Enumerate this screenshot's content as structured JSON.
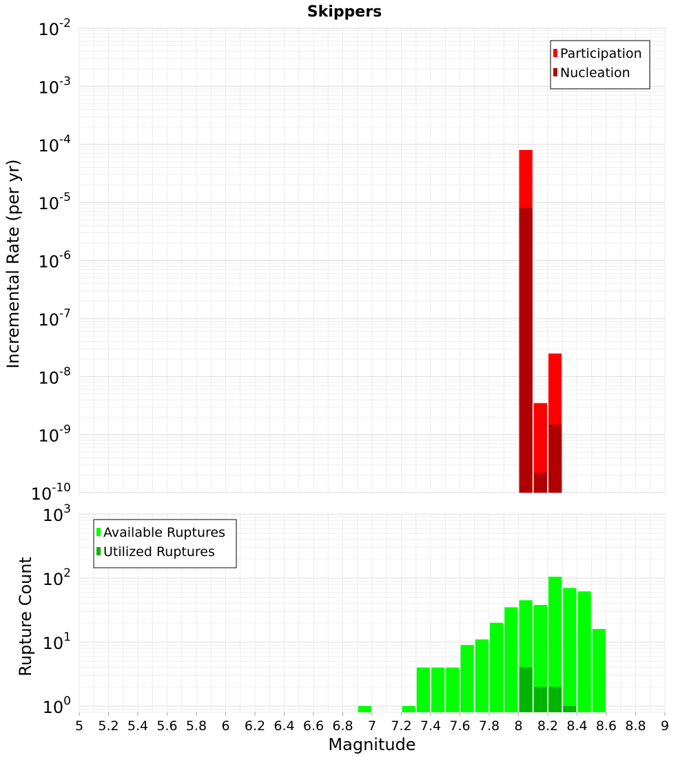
{
  "title": "Skippers",
  "xlabel": "Magnitude",
  "chart_data": [
    {
      "type": "bar",
      "title": "Skippers",
      "ylabel": "Incremental Rate (per yr)",
      "yscale": "log",
      "ylim": [
        1e-10,
        0.01
      ],
      "xlim": [
        5,
        9
      ],
      "grid": true,
      "legend_position": "top-right",
      "bin_width": 0.1,
      "series": [
        {
          "name": "Participation",
          "color": "#ff0000",
          "points": [
            {
              "x": 8.05,
              "y": 8e-05
            },
            {
              "x": 8.15,
              "y": 3.5e-09
            },
            {
              "x": 8.25,
              "y": 2.5e-08
            }
          ]
        },
        {
          "name": "Nucleation",
          "color": "#b00000",
          "points": [
            {
              "x": 8.05,
              "y": 8e-06
            },
            {
              "x": 8.15,
              "y": 2.2e-10
            },
            {
              "x": 8.25,
              "y": 1.5e-09
            }
          ]
        }
      ],
      "y_tick_labels": [
        {
          "base": "10",
          "exp": "-10"
        },
        {
          "base": "10",
          "exp": "-9"
        },
        {
          "base": "10",
          "exp": "-8"
        },
        {
          "base": "10",
          "exp": "-7"
        },
        {
          "base": "10",
          "exp": "-6"
        },
        {
          "base": "10",
          "exp": "-5"
        },
        {
          "base": "10",
          "exp": "-4"
        },
        {
          "base": "10",
          "exp": "-3"
        },
        {
          "base": "10",
          "exp": "-2"
        }
      ]
    },
    {
      "type": "bar",
      "ylabel": "Rupture Count",
      "xlabel": "Magnitude",
      "yscale": "log",
      "ylim": [
        0.8,
        1000
      ],
      "xlim": [
        5,
        9
      ],
      "grid": true,
      "legend_position": "top-left",
      "bin_width": 0.1,
      "series": [
        {
          "name": "Available Ruptures",
          "color": "#00ff00",
          "points": [
            {
              "x": 6.95,
              "y": 1
            },
            {
              "x": 7.25,
              "y": 1
            },
            {
              "x": 7.35,
              "y": 4
            },
            {
              "x": 7.45,
              "y": 4
            },
            {
              "x": 7.55,
              "y": 4
            },
            {
              "x": 7.65,
              "y": 9
            },
            {
              "x": 7.75,
              "y": 11
            },
            {
              "x": 7.85,
              "y": 20
            },
            {
              "x": 7.95,
              "y": 35
            },
            {
              "x": 8.05,
              "y": 45
            },
            {
              "x": 8.15,
              "y": 38
            },
            {
              "x": 8.25,
              "y": 105
            },
            {
              "x": 8.35,
              "y": 70
            },
            {
              "x": 8.45,
              "y": 62
            },
            {
              "x": 8.55,
              "y": 16
            }
          ]
        },
        {
          "name": "Utilized Ruptures",
          "color": "#00b400",
          "points": [
            {
              "x": 8.05,
              "y": 4
            },
            {
              "x": 8.15,
              "y": 2
            },
            {
              "x": 8.25,
              "y": 2
            },
            {
              "x": 8.35,
              "y": 1
            }
          ]
        }
      ],
      "y_tick_labels": [
        {
          "base": "10",
          "exp": "0"
        },
        {
          "base": "10",
          "exp": "1"
        },
        {
          "base": "10",
          "exp": "2"
        },
        {
          "base": "10",
          "exp": "3"
        }
      ]
    }
  ],
  "x_tick_labels": [
    "5",
    "5.2",
    "5.4",
    "5.6",
    "5.8",
    "6",
    "6.2",
    "6.4",
    "6.6",
    "6.8",
    "7",
    "7.2",
    "7.4",
    "7.6",
    "7.8",
    "8",
    "8.2",
    "8.4",
    "8.6",
    "8.8",
    "9"
  ]
}
